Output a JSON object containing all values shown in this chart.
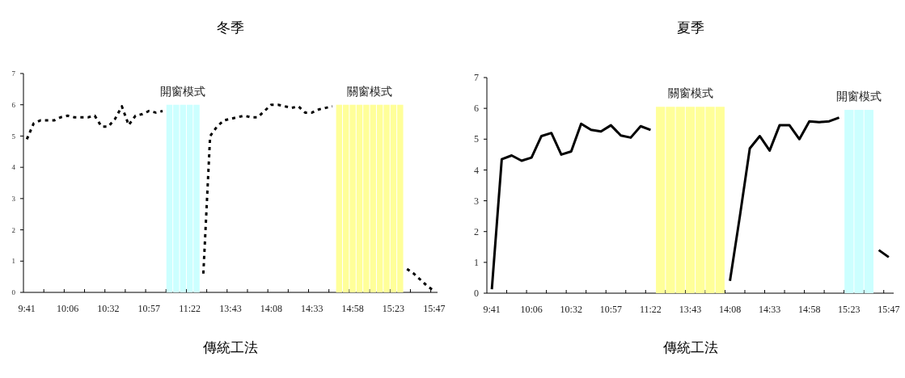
{
  "chart_data": [
    {
      "type": "line",
      "title": "冬季",
      "xlabel": "傳統工法",
      "line_style": "dotted",
      "ylim": [
        0,
        7
      ],
      "yticks": [
        0,
        1,
        2,
        3,
        4,
        5,
        6,
        7
      ],
      "categories": [
        "9:41",
        null,
        null,
        null,
        null,
        null,
        "10:06",
        null,
        null,
        null,
        null,
        null,
        "10:32",
        null,
        null,
        null,
        null,
        null,
        "10:57",
        null,
        null,
        null,
        null,
        null,
        "11:22",
        null,
        null,
        null,
        null,
        null,
        "13:43",
        null,
        null,
        null,
        null,
        null,
        "14:08",
        null,
        null,
        null,
        null,
        null,
        "14:33",
        null,
        null,
        null,
        null,
        null,
        "14:58",
        null,
        null,
        null,
        null,
        null,
        "15:23",
        null,
        null,
        null,
        null,
        null,
        "15:47"
      ],
      "series": [
        {
          "color": "#000000",
          "values": [
            4.9,
            5.4,
            5.5,
            5.5,
            5.5,
            5.6,
            5.65,
            5.6,
            5.6,
            5.6,
            5.65,
            5.3,
            5.3,
            5.55,
            5.95,
            5.35,
            5.65,
            5.7,
            5.8,
            5.75,
            5.8,
            null,
            null,
            null,
            null,
            null,
            0.6,
            5.0,
            5.3,
            5.5,
            5.55,
            5.6,
            5.65,
            5.6,
            5.6,
            5.8,
            6.0,
            6.0,
            5.95,
            5.9,
            5.95,
            5.75,
            5.75,
            5.85,
            5.9,
            5.95,
            null,
            null,
            null,
            null,
            null,
            null,
            null,
            null,
            null,
            null,
            0.75,
            0.6,
            0.4,
            0.2,
            0.05
          ]
        },
        {
          "type": "bar",
          "name": "開窗模式",
          "color": "#ccffff",
          "values": [
            null,
            null,
            null,
            null,
            null,
            null,
            null,
            null,
            null,
            null,
            null,
            null,
            null,
            null,
            null,
            null,
            null,
            null,
            null,
            null,
            null,
            6,
            6,
            6,
            6,
            6,
            null,
            null,
            null,
            null,
            null,
            null,
            null,
            null,
            null,
            null,
            null,
            null,
            null,
            null,
            null,
            null,
            null,
            null,
            null,
            null,
            null,
            null,
            null,
            null,
            null,
            null,
            null,
            null,
            null,
            null,
            null,
            null,
            null,
            null,
            null
          ]
        },
        {
          "type": "bar",
          "name": "關窗模式",
          "color": "#ffff99",
          "values": [
            null,
            null,
            null,
            null,
            null,
            null,
            null,
            null,
            null,
            null,
            null,
            null,
            null,
            null,
            null,
            null,
            null,
            null,
            null,
            null,
            null,
            null,
            null,
            null,
            null,
            null,
            null,
            null,
            null,
            null,
            null,
            null,
            null,
            null,
            null,
            null,
            null,
            null,
            null,
            null,
            null,
            null,
            null,
            null,
            null,
            null,
            6,
            6,
            6,
            6,
            6,
            6,
            6,
            6,
            6,
            6,
            null,
            null,
            null,
            null,
            null
          ]
        }
      ]
    },
    {
      "type": "line",
      "title": "夏季",
      "xlabel": "傳統工法",
      "line_style": "solid",
      "ylim": [
        0,
        7
      ],
      "yticks": [
        0,
        1,
        2,
        3,
        4,
        5,
        6,
        7
      ],
      "categories": [
        "9:41",
        null,
        null,
        null,
        "10:06",
        null,
        null,
        null,
        "10:32",
        null,
        null,
        null,
        "10:57",
        null,
        null,
        null,
        "11:22",
        null,
        null,
        null,
        "13:43",
        null,
        null,
        null,
        "14:08",
        null,
        null,
        null,
        "14:33",
        null,
        null,
        null,
        "14:58",
        null,
        null,
        null,
        "15:23",
        null,
        null,
        null,
        "15:47"
      ],
      "series": [
        {
          "color": "#000000",
          "values": [
            0.13,
            4.35,
            4.47,
            4.3,
            4.4,
            5.1,
            5.2,
            4.5,
            4.6,
            5.5,
            5.3,
            5.25,
            5.45,
            5.12,
            5.05,
            5.42,
            5.3,
            null,
            null,
            null,
            null,
            null,
            null,
            null,
            0.4,
            2.5,
            4.7,
            5.1,
            4.63,
            5.45,
            5.45,
            5.0,
            5.58,
            5.55,
            5.58,
            5.7,
            null,
            null,
            null,
            1.4,
            1.17
          ]
        },
        {
          "type": "bar",
          "name": "關窗模式",
          "color": "#ffff99",
          "values": [
            null,
            null,
            null,
            null,
            null,
            null,
            null,
            null,
            null,
            null,
            null,
            null,
            null,
            null,
            null,
            null,
            null,
            6.05,
            6.05,
            6.05,
            6.05,
            6.05,
            6.05,
            6.05,
            null,
            null,
            null,
            null,
            null,
            null,
            null,
            null,
            null,
            null,
            null,
            null,
            null,
            null,
            null,
            null,
            null
          ]
        },
        {
          "type": "bar",
          "name": "開窗模式",
          "color": "#ccffff",
          "values": [
            null,
            null,
            null,
            null,
            null,
            null,
            null,
            null,
            null,
            null,
            null,
            null,
            null,
            null,
            null,
            null,
            null,
            null,
            null,
            null,
            null,
            null,
            null,
            null,
            null,
            null,
            null,
            null,
            null,
            null,
            null,
            null,
            null,
            null,
            null,
            null,
            5.95,
            5.95,
            5.95,
            null,
            null
          ]
        }
      ]
    }
  ]
}
